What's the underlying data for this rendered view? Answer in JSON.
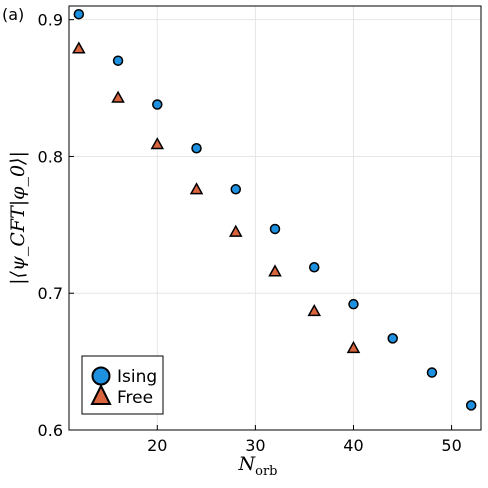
{
  "panel_label": "(a)",
  "chart_data": {
    "type": "scatter",
    "xlabel": "N",
    "xlabel_sub": "orb",
    "ylabel": "|⟨ψ_CFT|φ_0⟩|",
    "xlim": [
      11,
      53
    ],
    "ylim": [
      0.6,
      0.91
    ],
    "x_ticks": [
      20,
      30,
      40,
      50
    ],
    "y_ticks": [
      0.6,
      0.7,
      0.8,
      0.9
    ],
    "x_tick_labels": [
      "20",
      "30",
      "40",
      "50"
    ],
    "y_tick_labels": [
      "0.6",
      "0.7",
      "0.8",
      "0.9"
    ],
    "grid": true,
    "legend_position": "bottom-left",
    "series": [
      {
        "name": "Ising",
        "marker": "circle",
        "color": "#1E90E0",
        "x": [
          12,
          16,
          20,
          24,
          28,
          32,
          36,
          40,
          44,
          48,
          52
        ],
        "y": [
          0.904,
          0.87,
          0.838,
          0.806,
          0.776,
          0.747,
          0.719,
          0.692,
          0.667,
          0.642,
          0.618
        ]
      },
      {
        "name": "Free",
        "marker": "triangle",
        "color": "#D9643E",
        "x": [
          12,
          16,
          20,
          24,
          28,
          32,
          36,
          40
        ],
        "y": [
          0.879,
          0.843,
          0.809,
          0.776,
          0.745,
          0.716,
          0.687,
          0.66
        ]
      }
    ]
  }
}
